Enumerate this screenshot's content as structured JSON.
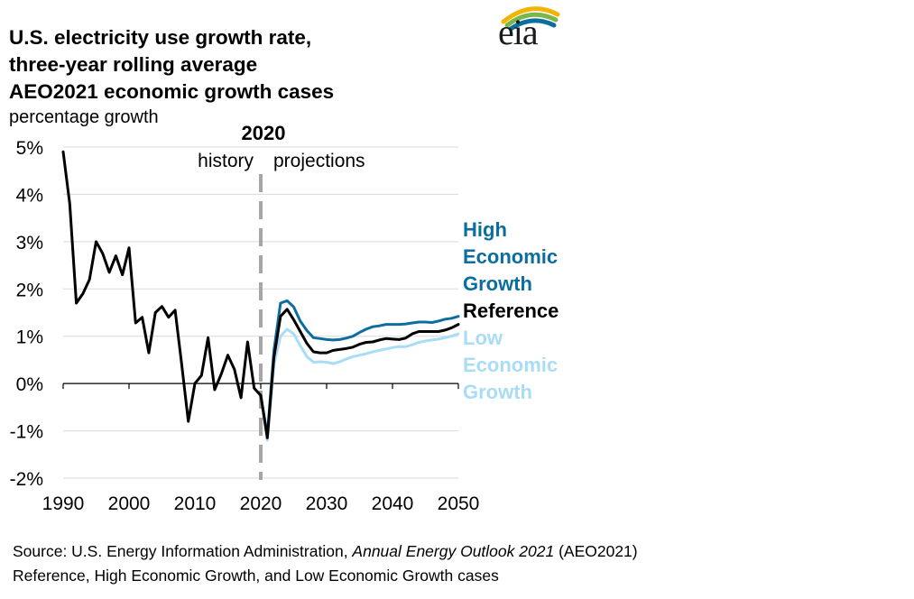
{
  "header": {
    "title_lines": [
      "U.S. electricity use growth rate,",
      "three-year rolling average",
      "AEO2021 economic growth cases"
    ],
    "units": "percentage growth"
  },
  "logo": {
    "text": "eia"
  },
  "colors": {
    "high": "#0b6e9e",
    "reference": "#000000",
    "low": "#a9dcf6",
    "divider": "#a6a6a6",
    "grid": "#d9d9d9"
  },
  "chart_data": {
    "type": "line",
    "title": "U.S. electricity use growth rate, three-year rolling average",
    "ylabel": "percentage growth",
    "xlim": [
      1990,
      2050
    ],
    "ylim": [
      -2,
      5
    ],
    "x_ticks": [
      "1990",
      "2000",
      "2010",
      "2020",
      "2030",
      "2040",
      "2050"
    ],
    "x_tick_values": [
      1990,
      2000,
      2010,
      2020,
      2030,
      2040,
      2050
    ],
    "y_ticks": [
      "-2%",
      "-1%",
      "0%",
      "1%",
      "2%",
      "3%",
      "4%",
      "5%"
    ],
    "y_tick_values": [
      -2,
      -1,
      0,
      1,
      2,
      3,
      4,
      5
    ],
    "divider": {
      "year": 2020,
      "label": "2020",
      "left_label": "history",
      "right_label": "projections"
    },
    "series": [
      {
        "name": "History",
        "label_lines": [],
        "color_key": "reference",
        "x": [
          1990,
          1991,
          1992,
          1993,
          1994,
          1995,
          1996,
          1997,
          1998,
          1999,
          2000,
          2001,
          2002,
          2003,
          2004,
          2005,
          2006,
          2007,
          2008,
          2009,
          2010,
          2011,
          2012,
          2013,
          2014,
          2015,
          2016,
          2017,
          2018,
          2019,
          2020
        ],
        "values": [
          4.9,
          3.8,
          1.7,
          1.9,
          2.2,
          3.0,
          2.75,
          2.35,
          2.7,
          2.3,
          2.87,
          1.28,
          1.4,
          0.65,
          1.5,
          1.63,
          1.4,
          1.55,
          0.4,
          -0.8,
          0.0,
          0.17,
          0.97,
          -0.13,
          0.2,
          0.6,
          0.3,
          -0.3,
          0.88,
          -0.1,
          -0.25
        ]
      },
      {
        "name": "High Economic Growth",
        "label_lines": [
          "High",
          "Economic",
          "Growth"
        ],
        "color_key": "high",
        "x": [
          2020,
          2021,
          2022,
          2023,
          2024,
          2025,
          2026,
          2027,
          2028,
          2029,
          2030,
          2031,
          2032,
          2033,
          2034,
          2035,
          2036,
          2037,
          2038,
          2039,
          2040,
          2041,
          2042,
          2043,
          2044,
          2045,
          2046,
          2047,
          2048,
          2049,
          2050
        ],
        "values": [
          -0.25,
          -1.1,
          0.7,
          1.7,
          1.75,
          1.62,
          1.32,
          1.12,
          0.97,
          0.95,
          0.93,
          0.92,
          0.93,
          0.96,
          1.0,
          1.08,
          1.15,
          1.2,
          1.22,
          1.25,
          1.25,
          1.25,
          1.26,
          1.28,
          1.3,
          1.3,
          1.29,
          1.32,
          1.36,
          1.38,
          1.42
        ]
      },
      {
        "name": "Reference",
        "label_lines": [
          "Reference"
        ],
        "color_key": "reference",
        "x": [
          2020,
          2021,
          2022,
          2023,
          2024,
          2025,
          2026,
          2027,
          2028,
          2029,
          2030,
          2031,
          2032,
          2033,
          2034,
          2035,
          2036,
          2037,
          2038,
          2039,
          2040,
          2041,
          2042,
          2043,
          2044,
          2045,
          2046,
          2047,
          2048,
          2049,
          2050
        ],
        "values": [
          -0.25,
          -1.15,
          0.55,
          1.42,
          1.57,
          1.35,
          1.1,
          0.85,
          0.67,
          0.65,
          0.65,
          0.7,
          0.72,
          0.74,
          0.77,
          0.83,
          0.87,
          0.88,
          0.92,
          0.95,
          0.94,
          0.93,
          0.96,
          1.05,
          1.1,
          1.1,
          1.1,
          1.1,
          1.13,
          1.18,
          1.25
        ]
      },
      {
        "name": "Low Economic Growth",
        "label_lines": [
          "Low",
          "Economic",
          "Growth"
        ],
        "color_key": "low",
        "x": [
          2020,
          2021,
          2022,
          2023,
          2024,
          2025,
          2026,
          2027,
          2028,
          2029,
          2030,
          2031,
          2032,
          2033,
          2034,
          2035,
          2036,
          2037,
          2038,
          2039,
          2040,
          2041,
          2042,
          2043,
          2044,
          2045,
          2046,
          2047,
          2048,
          2049,
          2050
        ],
        "values": [
          -0.25,
          -1.2,
          0.4,
          1.0,
          1.15,
          1.05,
          0.8,
          0.57,
          0.45,
          0.46,
          0.45,
          0.42,
          0.46,
          0.52,
          0.57,
          0.6,
          0.63,
          0.67,
          0.7,
          0.73,
          0.76,
          0.78,
          0.78,
          0.82,
          0.87,
          0.9,
          0.92,
          0.94,
          0.97,
          1.0,
          1.05
        ]
      }
    ]
  },
  "source": {
    "prefix": "Source: U.S. Energy Information Administration, ",
    "italic": "Annual Energy Outlook 2021",
    "suffix": " (AEO2021)",
    "line2": "Reference, High Economic Growth, and Low Economic Growth cases"
  }
}
